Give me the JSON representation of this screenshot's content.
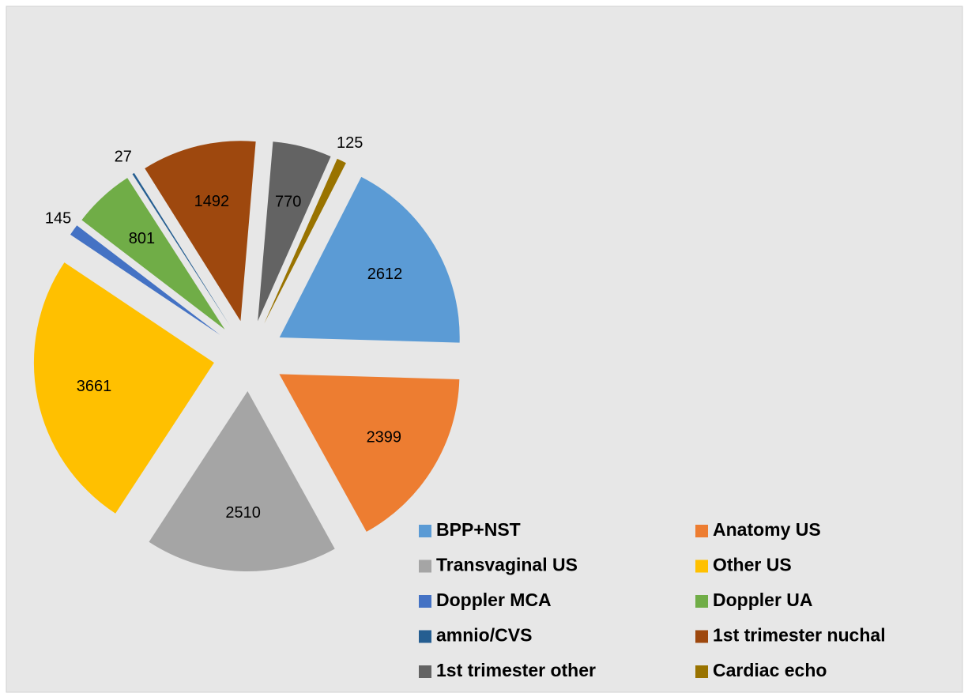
{
  "chart_data": {
    "type": "pie",
    "categories": [
      "BPP+NST",
      "Anatomy US",
      "Transvaginal US",
      "Other US",
      "Doppler MCA",
      "Doppler UA",
      "amnio/CVS",
      "1st trimester nuchal",
      "1st trimester other",
      "Cardiac echo"
    ],
    "values": [
      2612,
      2399,
      2510,
      3661,
      145,
      801,
      27,
      1492,
      770,
      125
    ],
    "colors": [
      "#5b9bd5",
      "#ed7d31",
      "#a5a5a5",
      "#ffc000",
      "#4472c4",
      "#70ad47",
      "#255e91",
      "#9e480e",
      "#636363",
      "#997300"
    ],
    "legend": "bottom-right"
  }
}
